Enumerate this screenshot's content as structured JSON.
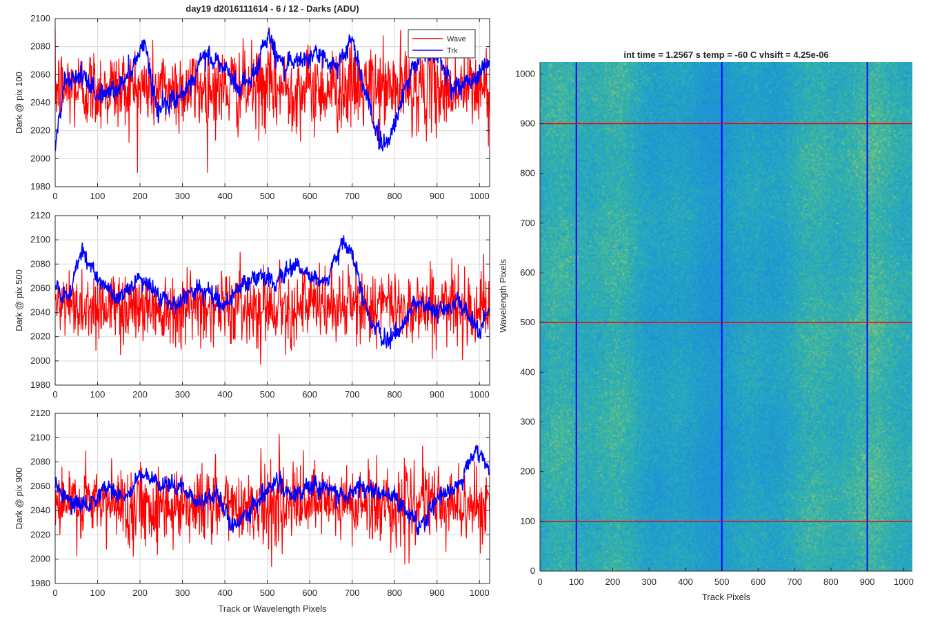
{
  "figure_title": "day19 d2016111614 - 6 / 12 - Darks (ADU)",
  "colors": {
    "wave": "#ff0000",
    "trk": "#0000ff",
    "grid": "#d9d9d9",
    "axis": "#262626"
  },
  "legend": {
    "entries": [
      "Wave",
      "Trk"
    ],
    "position": "top-right"
  },
  "chart_data": [
    {
      "type": "line",
      "title": "day19 d2016111614 - 6 / 12 - Darks (ADU)",
      "xlabel": "",
      "ylabel": "Dark @ pix 100",
      "xlim": [
        0,
        1024
      ],
      "ylim": [
        1980,
        2100
      ],
      "xticks": [
        0,
        100,
        200,
        300,
        400,
        500,
        600,
        700,
        800,
        900,
        1000
      ],
      "yticks": [
        1980,
        2000,
        2020,
        2040,
        2060,
        2080,
        2100
      ],
      "grid": true,
      "legend": "top-right",
      "series": [
        {
          "name": "Wave",
          "color": "#ff0000",
          "mean": 2050,
          "noise_sd": 15,
          "range": [
            1990,
            2100
          ]
        },
        {
          "name": "Trk",
          "color": "#0000ff",
          "anchors_x": [
            0,
            20,
            60,
            100,
            150,
            190,
            210,
            240,
            290,
            320,
            350,
            400,
            430,
            470,
            500,
            520,
            540,
            580,
            620,
            660,
            700,
            720,
            740,
            760,
            780,
            800,
            830,
            860,
            900,
            940,
            980,
            1024
          ],
          "anchors_y": [
            2005,
            2055,
            2060,
            2045,
            2050,
            2070,
            2085,
            2035,
            2045,
            2050,
            2075,
            2065,
            2050,
            2060,
            2090,
            2075,
            2065,
            2070,
            2075,
            2065,
            2085,
            2060,
            2040,
            2015,
            2010,
            2025,
            2055,
            2075,
            2075,
            2050,
            2055,
            2070
          ],
          "noise_sd": 6
        }
      ]
    },
    {
      "type": "line",
      "title": "",
      "xlabel": "",
      "ylabel": "Dark @ pix 500",
      "xlim": [
        0,
        1024
      ],
      "ylim": [
        1980,
        2120
      ],
      "xticks": [
        0,
        100,
        200,
        300,
        400,
        500,
        600,
        700,
        800,
        900,
        1000
      ],
      "yticks": [
        1980,
        2000,
        2020,
        2040,
        2060,
        2080,
        2100,
        2120
      ],
      "grid": true,
      "series": [
        {
          "name": "Wave",
          "color": "#ff0000",
          "mean": 2045,
          "noise_sd": 15,
          "range": [
            1990,
            2090
          ]
        },
        {
          "name": "Trk",
          "color": "#0000ff",
          "anchors_x": [
            0,
            30,
            60,
            100,
            150,
            200,
            240,
            280,
            330,
            370,
            400,
            430,
            480,
            520,
            560,
            600,
            640,
            680,
            700,
            720,
            740,
            780,
            820,
            850,
            900,
            950,
            980,
            1000,
            1024
          ],
          "anchors_y": [
            2060,
            2050,
            2090,
            2070,
            2050,
            2070,
            2055,
            2045,
            2060,
            2055,
            2045,
            2060,
            2070,
            2065,
            2080,
            2070,
            2065,
            2100,
            2090,
            2060,
            2035,
            2015,
            2030,
            2050,
            2040,
            2050,
            2035,
            2025,
            2045
          ],
          "noise_sd": 6
        }
      ]
    },
    {
      "type": "line",
      "title": "",
      "xlabel": "Track or Wavelength Pixels",
      "ylabel": "Dark @ pix 900",
      "xlim": [
        0,
        1024
      ],
      "ylim": [
        1980,
        2120
      ],
      "xticks": [
        0,
        100,
        200,
        300,
        400,
        500,
        600,
        700,
        800,
        900,
        1000
      ],
      "yticks": [
        1980,
        2000,
        2020,
        2040,
        2060,
        2080,
        2100,
        2120
      ],
      "grid": true,
      "series": [
        {
          "name": "Wave",
          "color": "#ff0000",
          "mean": 2045,
          "noise_sd": 16,
          "range": [
            1990,
            2110
          ]
        },
        {
          "name": "Trk",
          "color": "#0000ff",
          "anchors_x": [
            0,
            40,
            80,
            120,
            170,
            200,
            250,
            300,
            340,
            380,
            420,
            470,
            520,
            560,
            600,
            640,
            680,
            720,
            760,
            800,
            840,
            860,
            900,
            950,
            990,
            1024
          ],
          "anchors_y": [
            2060,
            2045,
            2045,
            2060,
            2050,
            2070,
            2060,
            2060,
            2045,
            2055,
            2025,
            2045,
            2065,
            2050,
            2060,
            2060,
            2050,
            2060,
            2055,
            2050,
            2035,
            2025,
            2050,
            2060,
            2090,
            2075
          ],
          "noise_sd": 6
        }
      ]
    },
    {
      "type": "heatmap",
      "title": "int time = 1.2567 s    temp = -60 C    vhsift = 4.25e-06",
      "xlabel": "Track Pixels",
      "ylabel": "Wavelength Pixels",
      "xlim": [
        0,
        1024
      ],
      "ylim": [
        0,
        1024
      ],
      "xticks": [
        0,
        100,
        200,
        300,
        400,
        500,
        600,
        700,
        800,
        900,
        1000
      ],
      "yticks": [
        0,
        100,
        200,
        300,
        400,
        500,
        600,
        700,
        800,
        900,
        1000
      ],
      "grid": false,
      "colormap": [
        "#1f8fd8",
        "#22a3c8",
        "#3cb7a0",
        "#b4c95c"
      ],
      "markers": {
        "vertical_lines": {
          "x": [
            100,
            500,
            900
          ],
          "color": "#0000ff"
        },
        "horizontal_lines": {
          "y": [
            100,
            500,
            900
          ],
          "color": "#ff0000"
        }
      }
    }
  ]
}
